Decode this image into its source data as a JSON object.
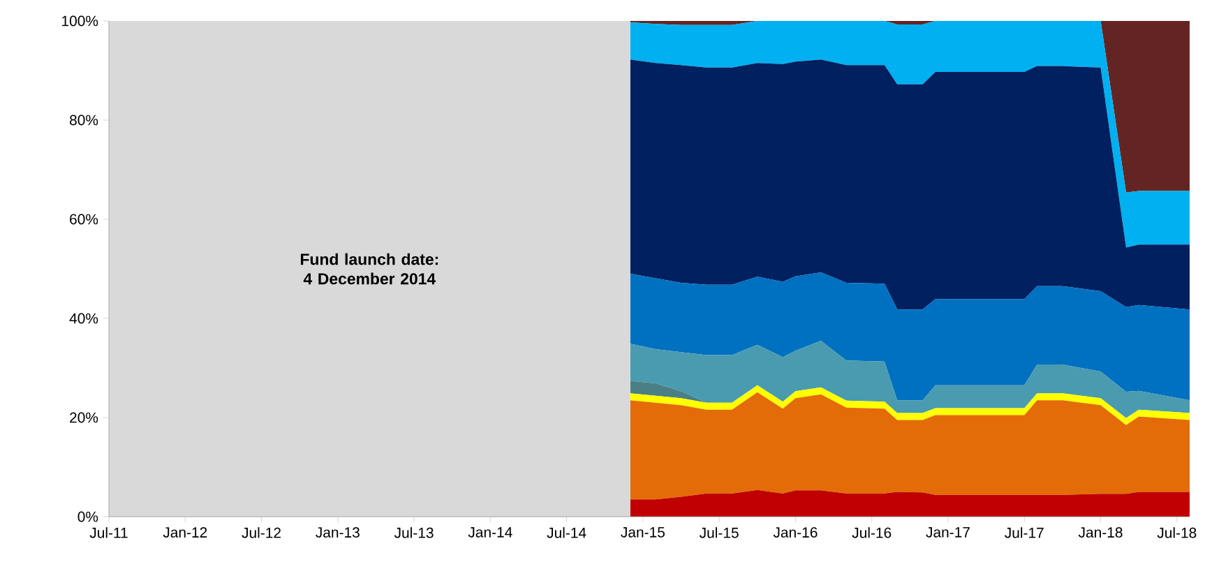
{
  "chart_data": {
    "type": "area",
    "stacked": true,
    "x": [
      "2014-12",
      "2015-02",
      "2015-04",
      "2015-06",
      "2015-08",
      "2015-10",
      "2015-12",
      "2016-01",
      "2016-03",
      "2016-05",
      "2016-08",
      "2016-09",
      "2016-11",
      "2016-12",
      "2017-07",
      "2017-08",
      "2017-10",
      "2018-01",
      "2018-03",
      "2018-04",
      "2018-08"
    ],
    "series": [
      {
        "color": "#c00000",
        "values": [
          3.5,
          3.5,
          4.0,
          4.7,
          4.7,
          5.4,
          4.7,
          5.3,
          5.3,
          4.7,
          4.7,
          5.0,
          4.9,
          4.4,
          4.4,
          4.4,
          4.4,
          4.6,
          4.6,
          5.0,
          5.0
        ]
      },
      {
        "color": "#e36c09",
        "values": [
          20.0,
          19.5,
          18.5,
          16.9,
          16.9,
          19.7,
          17.1,
          18.6,
          19.4,
          17.3,
          17.1,
          14.5,
          14.6,
          16.1,
          16.1,
          19.1,
          19.1,
          17.9,
          13.9,
          15.2,
          14.5
        ]
      },
      {
        "color": "#ffff00",
        "values": [
          1.4,
          1.4,
          1.4,
          1.4,
          1.4,
          1.4,
          1.4,
          1.4,
          1.4,
          1.4,
          1.4,
          1.4,
          1.4,
          1.4,
          1.4,
          1.4,
          1.4,
          1.4,
          1.4,
          1.4,
          1.4
        ]
      },
      {
        "color": "#4a7f85",
        "values": [
          2.5,
          2.5,
          1.4,
          0,
          0,
          0,
          0,
          0,
          0,
          0,
          0,
          0,
          0,
          0,
          0,
          0,
          0,
          0,
          0,
          0,
          0
        ]
      },
      {
        "color": "#4a9bb0",
        "values": [
          7.5,
          6.9,
          7.9,
          9.6,
          9.6,
          8.2,
          9.0,
          8.2,
          9.4,
          8.1,
          8.1,
          2.6,
          2.6,
          4.6,
          4.6,
          5.8,
          5.8,
          5.4,
          5.3,
          3.8,
          2.6
        ]
      },
      {
        "color": "#0070c0",
        "values": [
          14.1,
          14.3,
          14.0,
          14.2,
          14.2,
          13.7,
          15.2,
          15.0,
          13.8,
          15.7,
          15.7,
          18.3,
          18.3,
          17.4,
          17.4,
          15.8,
          15.8,
          16.2,
          17.1,
          17.3,
          18.3
        ]
      },
      {
        "color": "#002060",
        "values": [
          43.2,
          43.4,
          43.9,
          43.8,
          43.8,
          43.1,
          43.9,
          43.3,
          42.9,
          43.9,
          44.1,
          45.4,
          45.4,
          45.8,
          45.8,
          44.4,
          44.4,
          45.1,
          12.0,
          12.2,
          13.1
        ]
      },
      {
        "color": "#00b0f0",
        "values": [
          7.5,
          7.9,
          8.1,
          8.6,
          8.6,
          8.5,
          8.7,
          8.2,
          7.8,
          8.9,
          8.9,
          12.1,
          12.1,
          10.3,
          10.3,
          9.1,
          9.1,
          9.4,
          11.1,
          10.8,
          10.8
        ]
      },
      {
        "color": "#632523",
        "values": [
          0.3,
          0.6,
          0.8,
          0.8,
          0.8,
          0,
          0,
          0,
          0,
          0,
          0,
          0.7,
          0.7,
          0,
          0,
          0,
          0,
          0,
          34.6,
          34.3,
          34.3
        ]
      }
    ],
    "xlim": [
      "2011-07",
      "2018-08"
    ],
    "xticks": [
      {
        "value": "2011-07",
        "label": "Jul-11"
      },
      {
        "value": "2012-01",
        "label": "Jan-12"
      },
      {
        "value": "2012-07",
        "label": "Jul-12"
      },
      {
        "value": "2013-01",
        "label": "Jan-13"
      },
      {
        "value": "2013-07",
        "label": "Jul-13"
      },
      {
        "value": "2014-01",
        "label": "Jan-14"
      },
      {
        "value": "2014-07",
        "label": "Jul-14"
      },
      {
        "value": "2015-01",
        "label": "Jan-15"
      },
      {
        "value": "2015-07",
        "label": "Jul-15"
      },
      {
        "value": "2016-01",
        "label": "Jan-16"
      },
      {
        "value": "2016-07",
        "label": "Jul-16"
      },
      {
        "value": "2017-01",
        "label": "Jan-17"
      },
      {
        "value": "2017-07",
        "label": "Jul-17"
      },
      {
        "value": "2018-01",
        "label": "Jan-18"
      },
      {
        "value": "2018-07",
        "label": "Jul-18"
      }
    ],
    "ylim": [
      0,
      100
    ],
    "yticks": [
      {
        "value": 0,
        "label": "0%"
      },
      {
        "value": 20,
        "label": "20%"
      },
      {
        "value": 40,
        "label": "40%"
      },
      {
        "value": 60,
        "label": "60%"
      },
      {
        "value": 80,
        "label": "80%"
      },
      {
        "value": 100,
        "label": "100%"
      }
    ],
    "bands": [
      {
        "axis": "x",
        "from": "2011-07",
        "to": "2014-12",
        "label": "Fund launch date: 4 December 2014",
        "color": "#d9d9d9"
      }
    ]
  }
}
